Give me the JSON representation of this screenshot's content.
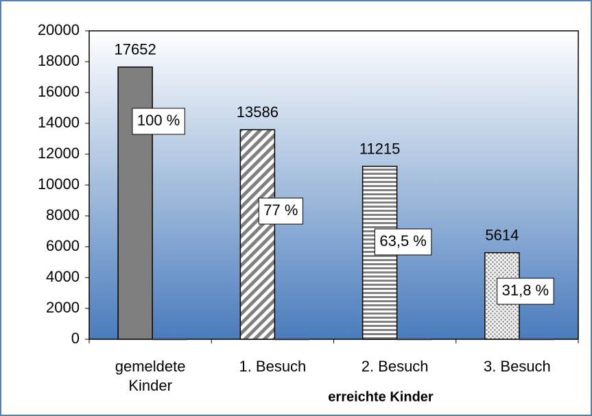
{
  "chart_data": {
    "type": "bar",
    "categories": [
      "gemeldete Kinder",
      "1. Besuch",
      "2. Besuch",
      "3. Besuch"
    ],
    "x_label": "erreichte Kinder",
    "series": [
      {
        "values": [
          17652,
          13586,
          11215,
          5614
        ],
        "patterns": [
          "solid",
          "diagonal",
          "horizontal",
          "dots"
        ],
        "color": "#7f7f7f"
      },
      {
        "values": [
          0,
          0,
          0,
          0
        ],
        "color": "#333333"
      }
    ],
    "annotations": [
      "100 %",
      "77 %",
      "63,5 %",
      "31,8 %"
    ],
    "ylim": [
      0,
      20000
    ],
    "yticks": [
      0,
      2000,
      4000,
      6000,
      8000,
      10000,
      12000,
      14000,
      16000,
      18000,
      20000
    ]
  }
}
